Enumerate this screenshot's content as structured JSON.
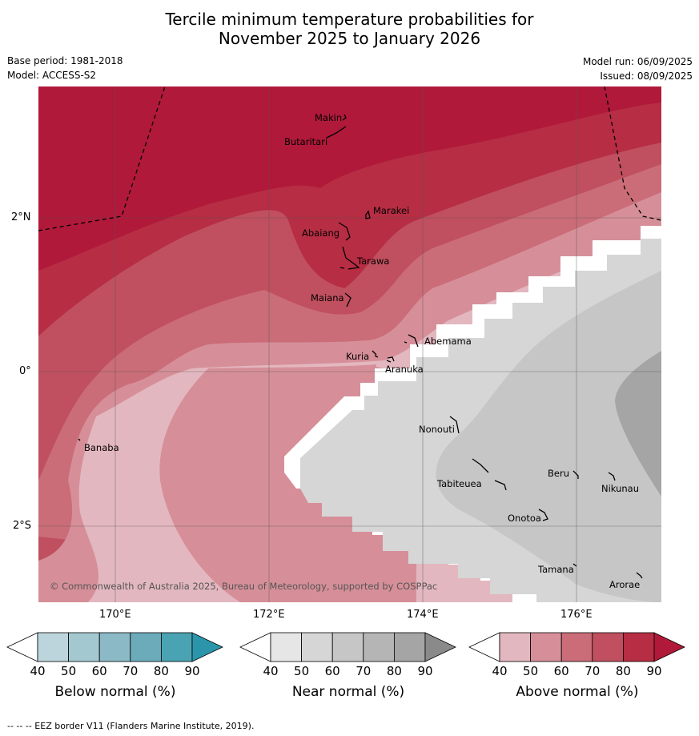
{
  "title_line1": "Tercile minimum temperature probabilities for",
  "title_line2": "November 2025 to January 2026",
  "base_period": "Base period: 1981-2018",
  "model": "Model: ACCESS-S2",
  "model_run": "Model run: 06/09/2025",
  "issued": "Issued: 08/09/2025",
  "copyright": "© Commonwealth of Australia 2025, Bureau of Meteorology, supported by COSPPac",
  "footer": "-- -- -- EEZ border V11 (Flanders Marine Institute, 2019).",
  "axes": {
    "lon_ticks": [
      "170°E",
      "172°E",
      "174°E",
      "176°E"
    ],
    "lat_ticks": [
      "2°N",
      "0°",
      "2°S"
    ]
  },
  "places": [
    "Makin",
    "Butaritari",
    "Marakei",
    "Abaiang",
    "Tarawa",
    "Maiana",
    "Abemama",
    "Kuria",
    "Aranuka",
    "Banaba",
    "Nonouti",
    "Tabiteuea",
    "Beru",
    "Nikunau",
    "Onotoa",
    "Tamana",
    "Arorae"
  ],
  "colorbars": [
    {
      "label": "Below normal (%)",
      "ticks": [
        "40",
        "50",
        "60",
        "70",
        "80",
        "90"
      ],
      "colors": [
        "#ffffff",
        "#bcd5dc",
        "#a4c8d0",
        "#8bbac6",
        "#6cabba",
        "#4aa3b2",
        "#2b96ab"
      ]
    },
    {
      "label": "Near normal (%)",
      "ticks": [
        "40",
        "50",
        "60",
        "70",
        "80",
        "90"
      ],
      "colors": [
        "#ffffff",
        "#e6e6e6",
        "#d6d6d6",
        "#c6c6c6",
        "#b5b5b5",
        "#a5a5a5",
        "#8a8a8a"
      ]
    },
    {
      "label": "Above normal (%)",
      "ticks": [
        "40",
        "50",
        "60",
        "70",
        "80",
        "90"
      ],
      "colors": [
        "#ffffff",
        "#e3b7bf",
        "#d68f99",
        "#ca6d79",
        "#c0505f",
        "#b62d44",
        "#b0193a"
      ]
    }
  ]
}
